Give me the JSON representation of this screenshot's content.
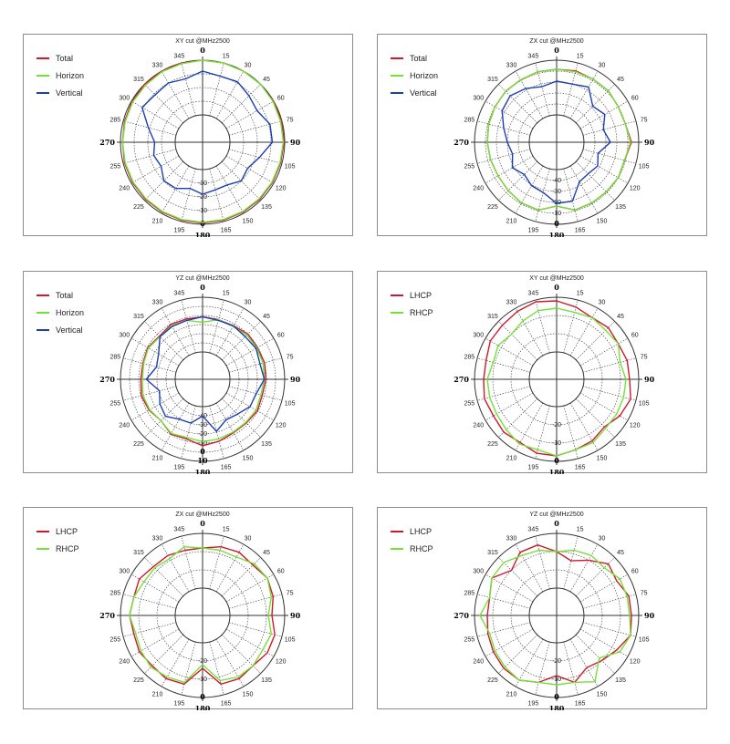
{
  "colors": {
    "Total": "#cc1a2c",
    "Horizon": "#74e03a",
    "Vertical": "#1a3fb0",
    "LHCP": "#cc1a2c",
    "RHCP": "#74e03a"
  },
  "chart_data": [
    {
      "type": "polar-line",
      "title": "XY cut @MHz2500",
      "angle_labels": [
        "0",
        "15",
        "30",
        "45",
        "60",
        "75",
        "90",
        "105",
        "120",
        "135",
        "150",
        "165",
        "180",
        "195",
        "210",
        "225",
        "240",
        "255",
        "270",
        "285",
        "300",
        "315",
        "330",
        "345"
      ],
      "radial_labels": [
        "-30",
        "-20",
        "-10",
        "0"
      ],
      "rlim": [
        -40,
        0
      ],
      "angles": [
        0,
        15,
        30,
        45,
        60,
        75,
        90,
        105,
        120,
        135,
        150,
        165,
        180,
        195,
        210,
        225,
        240,
        255,
        270,
        285,
        300,
        315,
        330,
        345
      ],
      "series": [
        {
          "name": "Total",
          "values": [
            1,
            0.5,
            0.3,
            0.2,
            0,
            -0.3,
            -0.5,
            -1,
            -1,
            -1,
            -1,
            -1,
            -1,
            -1,
            -1,
            -1,
            -1,
            -1,
            -1.5,
            -1,
            -0.5,
            0,
            0.5,
            1
          ]
        },
        {
          "name": "Horizon",
          "values": [
            0,
            0,
            0,
            0,
            -0.5,
            -1,
            -1,
            -1.5,
            -1.5,
            -1.5,
            -1.5,
            -1.5,
            -1.5,
            -1.5,
            -1.5,
            -1.5,
            -1.5,
            -1.5,
            -1.5,
            -1.5,
            -1,
            -1,
            -0.5,
            -0.5
          ]
        },
        {
          "name": "Vertical",
          "values": [
            -8,
            -10,
            -9,
            -12,
            -14,
            -9,
            -9,
            -17,
            -22,
            -20,
            -24,
            -24,
            -22,
            -25,
            -21,
            -20,
            -25,
            -23,
            -25,
            -19,
            -9,
            -11,
            -10,
            -12
          ]
        }
      ]
    },
    {
      "type": "polar-line",
      "title": "ZX cut @MHz2500",
      "angle_labels": [
        "0",
        "15",
        "30",
        "45",
        "60",
        "75",
        "90",
        "105",
        "120",
        "135",
        "150",
        "165",
        "180",
        "195",
        "210",
        "225",
        "240",
        "255",
        "270",
        "285",
        "300",
        "315",
        "330",
        "345"
      ],
      "radial_labels": [
        "-40",
        "-30",
        "-20",
        "-10",
        "0"
      ],
      "rlim": [
        -50,
        10
      ],
      "angles": [
        0,
        15,
        30,
        45,
        60,
        75,
        90,
        105,
        120,
        135,
        150,
        165,
        180,
        195,
        210,
        225,
        240,
        255,
        270,
        285,
        300,
        315,
        330,
        345
      ],
      "series": [
        {
          "name": "Total",
          "values": [
            0,
            1,
            0,
            0,
            -2,
            -2,
            2,
            -3,
            -2,
            -3,
            -3,
            -3,
            -10,
            -3,
            -3,
            -5,
            -6,
            -5,
            -4,
            -3,
            -2,
            -1,
            -1,
            0
          ]
        },
        {
          "name": "Horizon",
          "values": [
            0,
            0,
            0,
            0,
            -2,
            -2,
            1,
            -3,
            -2,
            -3,
            -3,
            -3,
            -10,
            -3,
            -3,
            -5,
            -6,
            -5,
            -4,
            -3,
            -2,
            -1,
            -1,
            0
          ]
        },
        {
          "name": "Vertical",
          "values": [
            -13,
            -14,
            -10,
            -24,
            -19,
            -27,
            -21,
            -33,
            -28,
            -31,
            -30,
            -13,
            -13,
            -23,
            -25,
            -30,
            -24,
            -30,
            -26,
            -20,
            -11,
            -8,
            -12,
            -17
          ]
        }
      ]
    },
    {
      "type": "polar-line",
      "title": "YZ cut @MHz2500",
      "angle_labels": [
        "0",
        "15",
        "30",
        "45",
        "60",
        "75",
        "90",
        "105",
        "120",
        "135",
        "150",
        "165",
        "180",
        "195",
        "210",
        "225",
        "240",
        "255",
        "270",
        "285",
        "300",
        "315",
        "330",
        "345"
      ],
      "radial_labels": [
        "-40",
        "-30",
        "-20",
        "-10",
        "0",
        "10"
      ],
      "rlim": [
        -50,
        20
      ],
      "angles": [
        0,
        15,
        30,
        45,
        60,
        75,
        90,
        105,
        120,
        135,
        150,
        165,
        180,
        195,
        210,
        225,
        240,
        255,
        270,
        285,
        300,
        315,
        330,
        345
      ],
      "series": [
        {
          "name": "Total",
          "values": [
            -5,
            -6,
            -6,
            -3,
            -4,
            -3,
            -4,
            -6,
            -4,
            -6,
            -6,
            -3,
            0,
            -6,
            -4,
            -10,
            -6,
            -4,
            -6,
            -6,
            -4,
            -7,
            -4,
            -5
          ]
        },
        {
          "name": "Horizon",
          "values": [
            -12,
            -6,
            -7,
            -5,
            -5,
            -5,
            -6,
            -8,
            -6,
            -7,
            -7,
            -6,
            -5,
            -8,
            -5,
            -10,
            -7,
            -6,
            -8,
            -7,
            -5,
            -8,
            -6,
            -7
          ]
        },
        {
          "name": "Vertical",
          "values": [
            -5,
            -7,
            -6,
            -8,
            -6,
            -9,
            -6,
            -14,
            -15,
            -22,
            -25,
            -16,
            -38,
            -27,
            -26,
            -18,
            -22,
            -28,
            -13,
            -24,
            -20,
            -8,
            -7,
            -7
          ]
        }
      ]
    },
    {
      "type": "polar-line",
      "title": "XY cut @MHz2500",
      "angle_labels": [
        "0",
        "15",
        "30",
        "45",
        "60",
        "75",
        "90",
        "105",
        "120",
        "135",
        "150",
        "165",
        "180",
        "195",
        "210",
        "225",
        "240",
        "255",
        "270",
        "285",
        "300",
        "315",
        "330",
        "345"
      ],
      "radial_labels": [
        "-20",
        "-10",
        "0"
      ],
      "rlim": [
        -30,
        0
      ],
      "angles": [
        0,
        15,
        30,
        45,
        60,
        75,
        90,
        105,
        120,
        135,
        150,
        165,
        180,
        195,
        210,
        225,
        240,
        255,
        270,
        285,
        300,
        315,
        330,
        345
      ],
      "series": [
        {
          "name": "LHCP",
          "values": [
            -2,
            -4,
            -6,
            -5,
            -6,
            -5,
            -5,
            -3,
            -5,
            -8,
            -6,
            -5,
            -3,
            -3,
            -5,
            -4,
            -5,
            -4,
            -5,
            -5,
            -3,
            -3,
            -2,
            -1
          ]
        },
        {
          "name": "RHCP",
          "values": [
            -6,
            -7,
            -6,
            -7,
            -6,
            -9,
            -7,
            -7,
            -7,
            -7,
            -5,
            -5,
            -3,
            -5,
            -4,
            -6,
            -7,
            -7,
            -7,
            -9,
            -8,
            -10,
            -8,
            -6
          ]
        }
      ]
    },
    {
      "type": "polar-line",
      "title": "ZX cut @MHz2500",
      "angle_labels": [
        "0",
        "15",
        "30",
        "45",
        "60",
        "75",
        "90",
        "105",
        "120",
        "135",
        "150",
        "165",
        "180",
        "195",
        "210",
        "225",
        "240",
        "255",
        "270",
        "285",
        "300",
        "315",
        "330",
        "345"
      ],
      "radial_labels": [
        "-20",
        "-10",
        "0"
      ],
      "rlim": [
        -30,
        0
      ],
      "angles": [
        0,
        15,
        30,
        45,
        60,
        75,
        90,
        105,
        120,
        135,
        150,
        165,
        180,
        195,
        210,
        225,
        240,
        255,
        270,
        285,
        300,
        315,
        330,
        345
      ],
      "series": [
        {
          "name": "LHCP",
          "values": [
            -8,
            -6,
            -5,
            -6,
            -4,
            -5,
            -7,
            -4,
            -4,
            -6,
            -5,
            -6,
            -16,
            -6,
            -5,
            -6,
            -5,
            -6,
            -5,
            -6,
            -5,
            -7,
            -7,
            -8
          ]
        },
        {
          "name": "RHCP",
          "values": [
            -8,
            -8,
            -8,
            -5,
            -4,
            -6,
            -9,
            -6,
            -7,
            -6,
            -6,
            -8,
            -18,
            -7,
            -6,
            -5,
            -6,
            -7,
            -5,
            -6,
            -8,
            -8,
            -9,
            -6
          ]
        }
      ]
    },
    {
      "type": "polar-line",
      "title": "YZ cut @MHz2500",
      "angle_labels": [
        "0",
        "15",
        "30",
        "45",
        "60",
        "75",
        "90",
        "105",
        "120",
        "135",
        "150",
        "165",
        "180",
        "195",
        "210",
        "225",
        "240",
        "255",
        "270",
        "285",
        "300",
        "315",
        "330",
        "345"
      ],
      "radial_labels": [
        "-20",
        "-10",
        "0"
      ],
      "rlim": [
        -30,
        0
      ],
      "angles": [
        0,
        15,
        30,
        45,
        60,
        75,
        90,
        105,
        120,
        135,
        150,
        165,
        180,
        195,
        210,
        225,
        240,
        255,
        270,
        285,
        300,
        315,
        330,
        345
      ],
      "series": [
        {
          "name": "LHCP",
          "values": [
            -10,
            -14,
            -10,
            -5,
            -7,
            -4,
            -4,
            -3,
            -7,
            -10,
            -12,
            -7,
            -12,
            -7,
            -4,
            -4,
            -5,
            -6,
            -7,
            -7,
            -4,
            -10,
            -5,
            -5
          ]
        },
        {
          "name": "RHCP",
          "values": [
            -10,
            -8,
            -7,
            -8,
            -5,
            -5,
            -5,
            -3,
            -5,
            -12,
            -3,
            -7,
            -7,
            -7,
            -4,
            -5,
            -6,
            -7,
            -3,
            -7,
            -4,
            -4,
            -7,
            -8
          ]
        }
      ]
    }
  ]
}
